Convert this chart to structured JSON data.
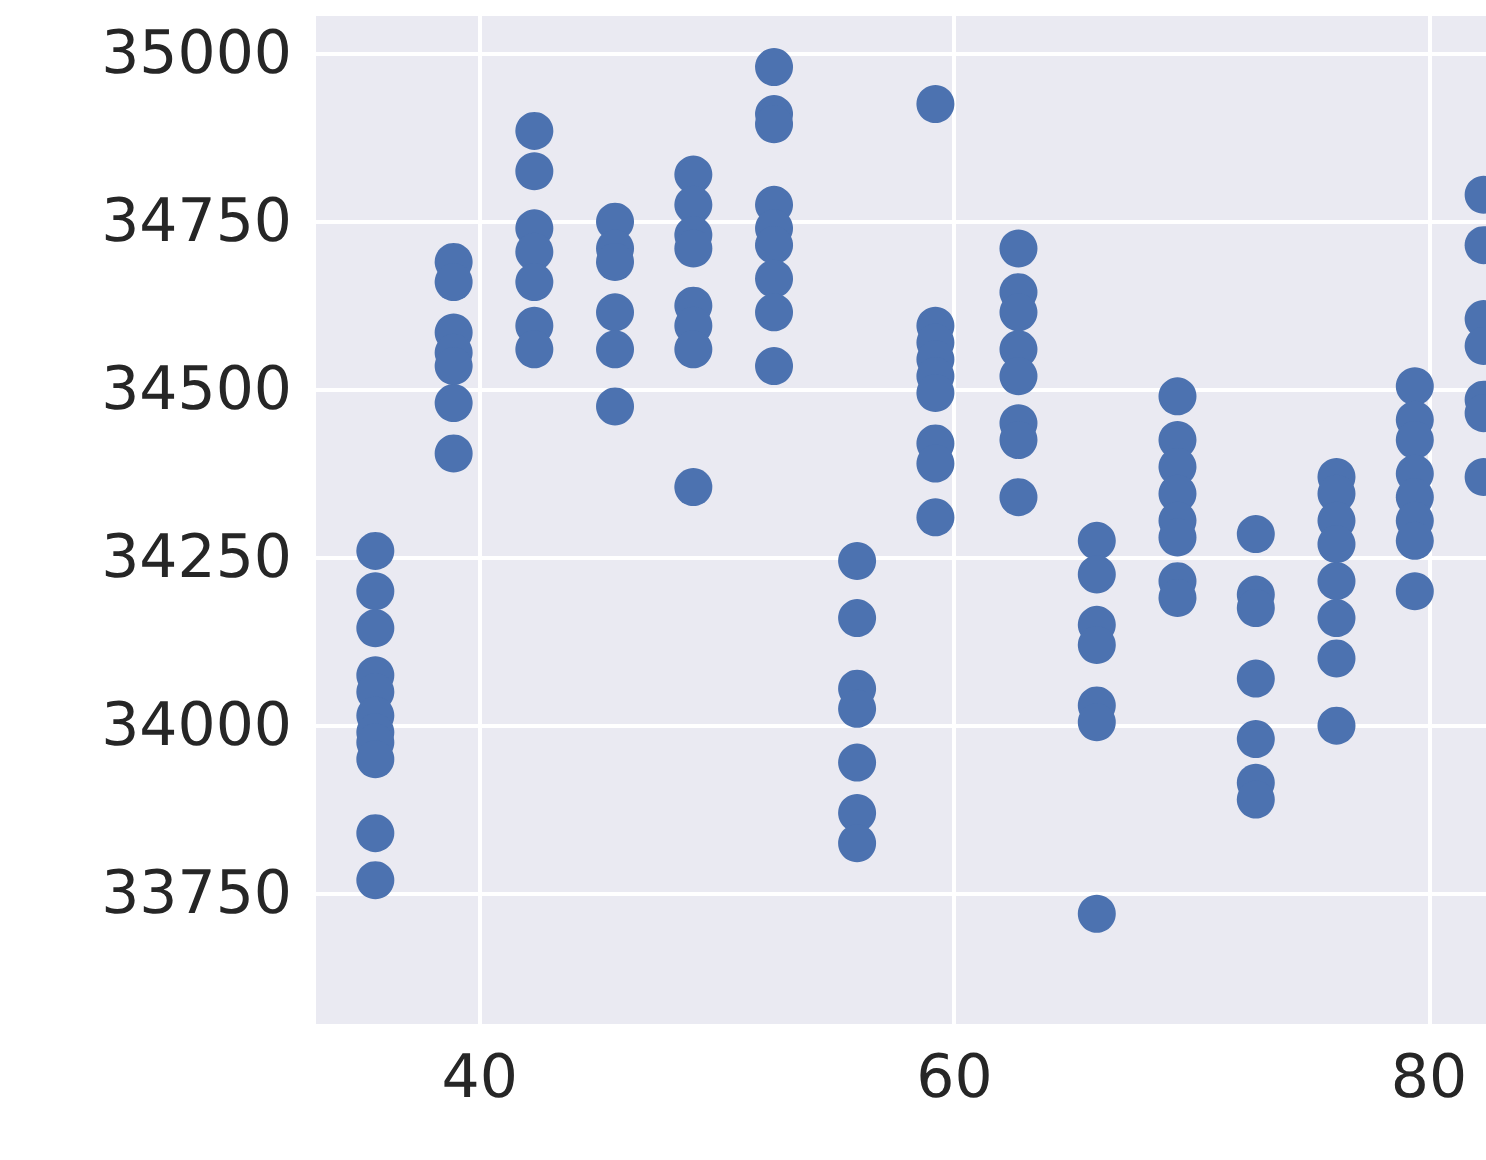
{
  "chart_data": {
    "type": "scatter",
    "marker": "circle",
    "grid": true,
    "xlim": [
      33.1,
      82.4
    ],
    "ylim": [
      33556,
      35056
    ],
    "xticks": [
      40,
      60,
      80
    ],
    "yticks": [
      33750,
      34000,
      34250,
      34500,
      34750,
      35000
    ],
    "series": [
      {
        "color": "#4c72b0",
        "x": [
          35.6,
          35.6,
          35.6,
          35.6,
          35.6,
          35.6,
          35.6,
          35.6,
          35.6,
          35.6,
          35.6,
          38.9,
          38.9,
          38.9,
          38.9,
          38.9,
          38.9,
          38.9,
          42.3,
          42.3,
          42.3,
          42.3,
          42.3,
          42.3,
          42.3,
          45.7,
          45.7,
          45.7,
          45.7,
          45.7,
          45.7,
          49.0,
          49.0,
          49.0,
          49.0,
          49.0,
          49.0,
          49.0,
          49.0,
          52.4,
          52.4,
          52.4,
          52.4,
          52.4,
          52.4,
          52.4,
          52.4,
          52.4,
          55.9,
          55.9,
          55.9,
          55.9,
          55.9,
          55.9,
          55.9,
          59.2,
          59.2,
          59.2,
          59.2,
          59.2,
          59.2,
          59.2,
          59.2,
          59.2,
          62.7,
          62.7,
          62.7,
          62.7,
          62.7,
          62.7,
          62.7,
          62.7,
          66.0,
          66.0,
          66.0,
          66.0,
          66.0,
          66.0,
          66.0,
          69.4,
          69.4,
          69.4,
          69.4,
          69.4,
          69.4,
          69.4,
          69.4,
          72.7,
          72.7,
          72.7,
          72.7,
          72.7,
          72.7,
          72.7,
          76.1,
          76.1,
          76.1,
          76.1,
          76.1,
          76.1,
          76.1,
          76.1,
          79.4,
          79.4,
          79.4,
          79.4,
          79.4,
          79.4,
          79.4,
          79.4,
          82.3,
          82.3,
          82.3,
          82.3,
          82.3,
          82.3,
          82.3
        ],
        "values": [
          34260,
          34200,
          34145,
          34075,
          34050,
          34015,
          33990,
          33975,
          33950,
          33840,
          33770,
          34690,
          34660,
          34585,
          34555,
          34535,
          34480,
          34405,
          34885,
          34825,
          34740,
          34705,
          34660,
          34595,
          34560,
          34750,
          34710,
          34690,
          34615,
          34560,
          34475,
          34820,
          34775,
          34730,
          34710,
          34625,
          34595,
          34560,
          34355,
          34980,
          34910,
          34895,
          34775,
          34740,
          34715,
          34665,
          34615,
          34535,
          34245,
          34160,
          34055,
          34025,
          33945,
          33870,
          33825,
          34925,
          34595,
          34570,
          34545,
          34520,
          34495,
          34420,
          34390,
          34310,
          34710,
          34645,
          34615,
          34560,
          34520,
          34450,
          34425,
          34340,
          34275,
          34225,
          34150,
          34120,
          34030,
          34005,
          33720,
          34490,
          34425,
          34385,
          34345,
          34305,
          34280,
          34215,
          34190,
          34285,
          34195,
          34175,
          34070,
          33980,
          33915,
          33890,
          34370,
          34345,
          34305,
          34270,
          34215,
          34160,
          34100,
          34000,
          34505,
          34455,
          34425,
          34375,
          34340,
          34305,
          34275,
          34200,
          34790,
          34715,
          34605,
          34565,
          34485,
          34465,
          34370
        ]
      }
    ]
  }
}
